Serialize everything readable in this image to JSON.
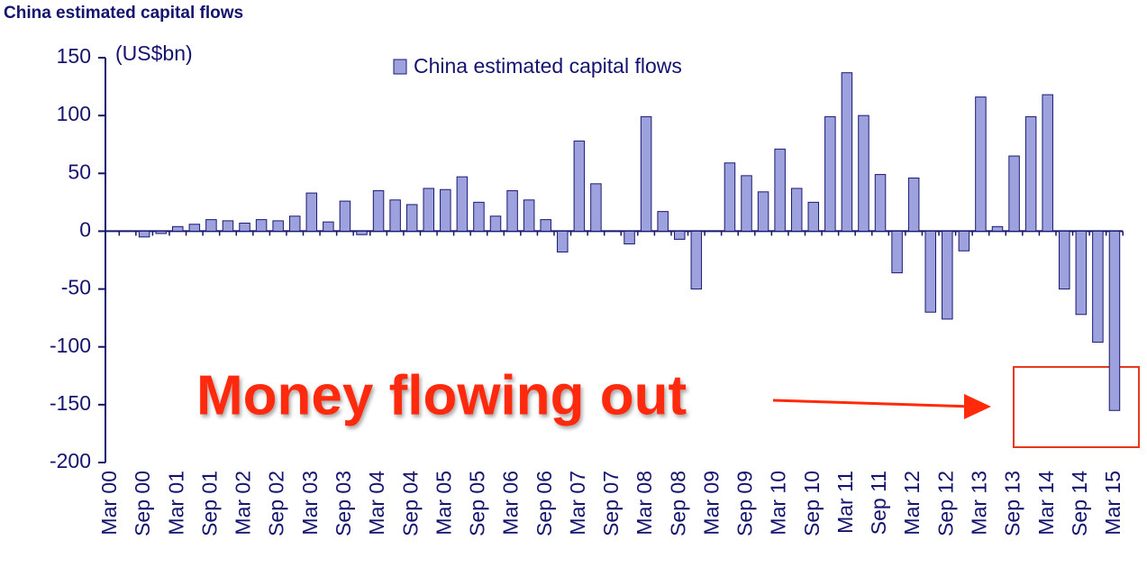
{
  "chart_data": {
    "type": "bar",
    "title": "China estimated capital flows",
    "y_label": "(US$bn)",
    "annotation": "Money flowing out",
    "categories": [
      "Mar 00",
      null,
      "Sep 00",
      null,
      "Mar 01",
      null,
      "Sep 01",
      null,
      "Mar 02",
      null,
      "Sep 02",
      null,
      "Mar 03",
      null,
      "Sep 03",
      null,
      "Mar 04",
      null,
      "Sep 04",
      null,
      "Mar 05",
      null,
      "Sep 05",
      null,
      "Mar 06",
      null,
      "Sep 06",
      null,
      "Mar 07",
      null,
      "Sep 07",
      null,
      "Mar 08",
      null,
      "Sep 08",
      null,
      "Mar 09",
      null,
      "Sep 09",
      null,
      "Mar 10",
      null,
      "Sep 10",
      null,
      "Mar 11",
      null,
      "Sep 11",
      null,
      "Mar 12",
      null,
      "Sep 12",
      null,
      "Mar 13",
      null,
      "Sep 13",
      null,
      "Mar 14",
      null,
      "Sep 14",
      null,
      "Mar 15"
    ],
    "series": [
      {
        "name": "China estimated capital flows",
        "color": "#9da1de",
        "values": [
          0,
          0,
          -5,
          -2,
          4,
          6,
          10,
          9,
          7,
          10,
          9,
          13,
          33,
          8,
          26,
          -3,
          35,
          27,
          23,
          37,
          36,
          47,
          25,
          13,
          35,
          27,
          10,
          -18,
          78,
          41,
          0,
          -11,
          99,
          17,
          -7,
          -50,
          0,
          59,
          48,
          34,
          71,
          37,
          25,
          99,
          137,
          100,
          49,
          -36,
          46,
          -70,
          -76,
          -17,
          116,
          4,
          65,
          99,
          118,
          -50,
          -72,
          -96,
          -155
        ]
      }
    ],
    "ylim": [
      -200,
      150
    ],
    "yticks": [
      -200,
      -150,
      -100,
      -50,
      0,
      50,
      100,
      150
    ],
    "legend": "top"
  }
}
